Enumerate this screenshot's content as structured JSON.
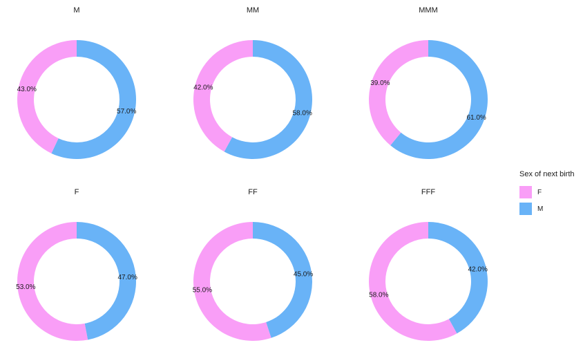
{
  "chart_data": {
    "type": "pie",
    "legend_title": "Sex of next birth",
    "legend_placement": "right",
    "categories": [
      "F",
      "M"
    ],
    "colors": {
      "F": "#f99ef7",
      "M": "#69b3f7"
    },
    "panels": [
      {
        "title": "M",
        "values": [
          43.0,
          57.0
        ],
        "labels": [
          "43.0%",
          "57.0%"
        ]
      },
      {
        "title": "MM",
        "values": [
          42.0,
          58.0
        ],
        "labels": [
          "42.0%",
          "58.0%"
        ]
      },
      {
        "title": "MMM",
        "values": [
          39.0,
          61.0
        ],
        "labels": [
          "39.0%",
          "61.0%"
        ]
      },
      {
        "title": "F",
        "values": [
          53.0,
          47.0
        ],
        "labels": [
          "53.0%",
          "47.0%"
        ]
      },
      {
        "title": "FF",
        "values": [
          55.0,
          45.0
        ],
        "labels": [
          "55.0%",
          "45.0%"
        ]
      },
      {
        "title": "FFF",
        "values": [
          58.0,
          42.0
        ],
        "labels": [
          "58.0%",
          "42.0%"
        ]
      }
    ]
  }
}
